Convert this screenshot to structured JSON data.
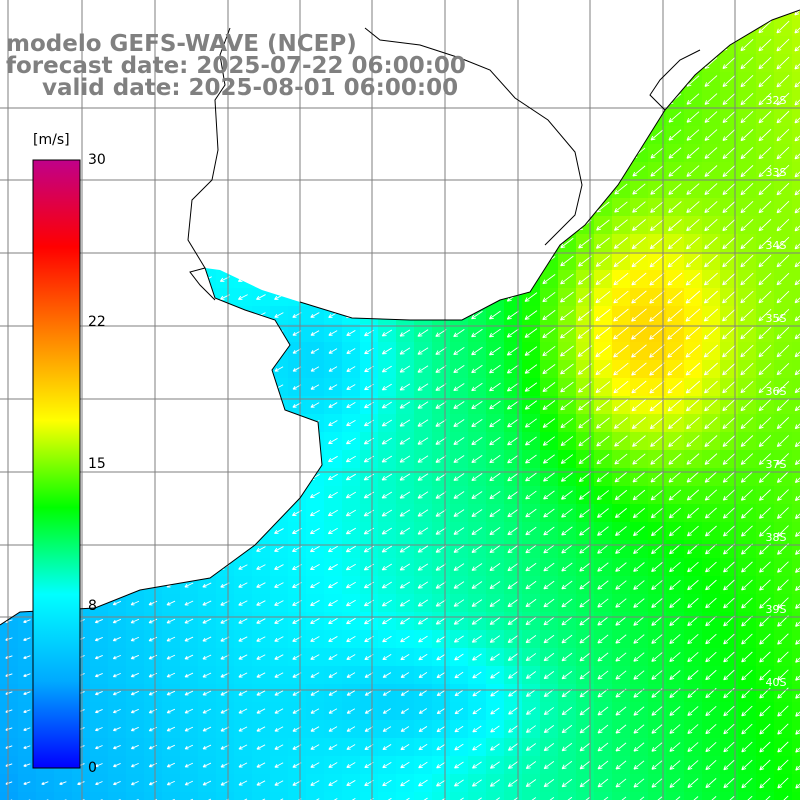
{
  "header": {
    "line1": "modelo GEFS-WAVE (NCEP)",
    "line2": "forecast date: 2025-07-22 06:00:00",
    "line3": "valid date: 2025-08-01 06:00:00"
  },
  "colorbar": {
    "unit": "[m/s]",
    "ticks": [
      {
        "label": "30",
        "value": 30
      },
      {
        "label": "22",
        "value": 22
      },
      {
        "label": "15",
        "value": 15
      },
      {
        "label": "8",
        "value": 8
      },
      {
        "label": "0",
        "value": 0
      }
    ],
    "min": 0,
    "max": 30,
    "stops": [
      "#0000ff",
      "#00aaff",
      "#00ffff",
      "#00ff00",
      "#ffff00",
      "#ff8000",
      "#ff0000",
      "#c0008a"
    ]
  },
  "map": {
    "lat_labels": [
      "32S",
      "33S",
      "34S",
      "35S",
      "36S",
      "37S",
      "38S",
      "39S",
      "40S"
    ],
    "land_color": "#ffffff",
    "grid_color": "#7f7f7f",
    "arrow_color": "#ffffff",
    "coastline_color": "#000000"
  }
}
